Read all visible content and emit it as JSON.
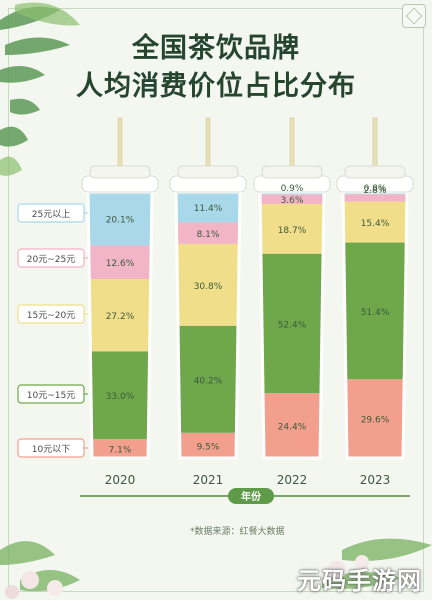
{
  "title_line1": "全国茶饮品牌",
  "title_line2": "人均消费价位占比分布",
  "source": "*数据来源：红餐大数据",
  "watermark": "元码手游网",
  "chart_data": {
    "type": "bar",
    "stacked": true,
    "title": "全国茶饮品牌 人均消费价位占比分布",
    "xlabel": "年份",
    "ylabel": "",
    "categories": [
      "2020",
      "2021",
      "2022",
      "2023"
    ],
    "series": [
      {
        "name": "10元以下",
        "color": "#f2a08d",
        "values": [
          7.1,
          9.5,
          24.4,
          29.6
        ],
        "labels": [
          "7.1%",
          "9.5%",
          "24.4%",
          "29.6%"
        ]
      },
      {
        "name": "10元~15元",
        "color": "#6ea84a",
        "values": [
          33.0,
          40.2,
          52.4,
          51.4
        ],
        "labels": [
          "33.0%",
          "40.2%",
          "52.4%",
          "51.4%"
        ]
      },
      {
        "name": "15元~20元",
        "color": "#f1de8a",
        "values": [
          27.2,
          30.8,
          18.7,
          15.4
        ],
        "labels": [
          "27.2%",
          "30.8%",
          "18.7%",
          "15.4%"
        ]
      },
      {
        "name": "20元~25元",
        "color": "#f2b4c7",
        "values": [
          12.6,
          8.1,
          3.6,
          2.8
        ],
        "labels": [
          "12.6%",
          "8.1%",
          "3.6%",
          "2.8%"
        ]
      },
      {
        "name": "25元以上",
        "color": "#a9d8ea",
        "values": [
          20.1,
          11.4,
          0.9,
          0.8
        ],
        "labels": [
          "20.1%",
          "11.4%",
          "0.9%",
          "0.8%"
        ]
      }
    ],
    "ylim": [
      0,
      100
    ],
    "legend_position": "left",
    "grid": false
  }
}
